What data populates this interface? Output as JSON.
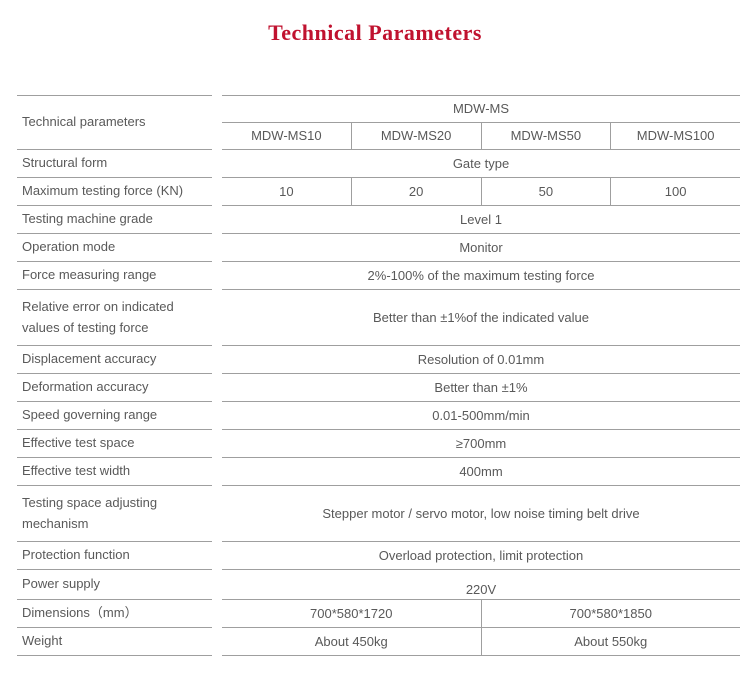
{
  "title": "Technical Parameters",
  "colors": {
    "accent": "#c0122f",
    "line": "#9f9f9f",
    "text": "#595959"
  },
  "table": {
    "corner_label": "Technical parameters",
    "series_header": "MDW-MS",
    "models": [
      "MDW-MS10",
      "MDW-MS20",
      "MDW-MS50",
      "MDW-MS100"
    ],
    "rows": [
      {
        "label": "Structural form",
        "value": "Gate type"
      },
      {
        "label": "Maximum testing force (KN)",
        "values": [
          "10",
          "20",
          "50",
          "100"
        ]
      },
      {
        "label": "Testing machine grade",
        "value": "Level 1"
      },
      {
        "label": "Operation mode",
        "value": "Monitor"
      },
      {
        "label": "Force measuring range",
        "value": "2%-100% of the maximum testing force"
      },
      {
        "label": "Relative error on indicated\nvalues of testing force",
        "value": "Better than ±1%of the indicated value"
      },
      {
        "label": "Displacement accuracy",
        "value": "Resolution of 0.01mm"
      },
      {
        "label": "Deformation accuracy",
        "value": "Better than ±1%"
      },
      {
        "label": "Speed governing range",
        "value": "0.01-500mm/min"
      },
      {
        "label": "Effective test space",
        "value": "≥700mm"
      },
      {
        "label": "Effective test width",
        "value": "400mm"
      },
      {
        "label": "Testing space adjusting\nmechanism",
        "value": "Stepper motor / servo motor, low noise timing belt drive"
      },
      {
        "label": "Protection function",
        "value": "Overload protection, limit protection"
      },
      {
        "label": "Power supply",
        "value": "220V"
      },
      {
        "label": "Dimensions（mm）",
        "values2": [
          "700*580*1720",
          "700*580*1850"
        ]
      },
      {
        "label": "Weight",
        "values2": [
          "About 450kg",
          "About 550kg"
        ]
      }
    ]
  }
}
